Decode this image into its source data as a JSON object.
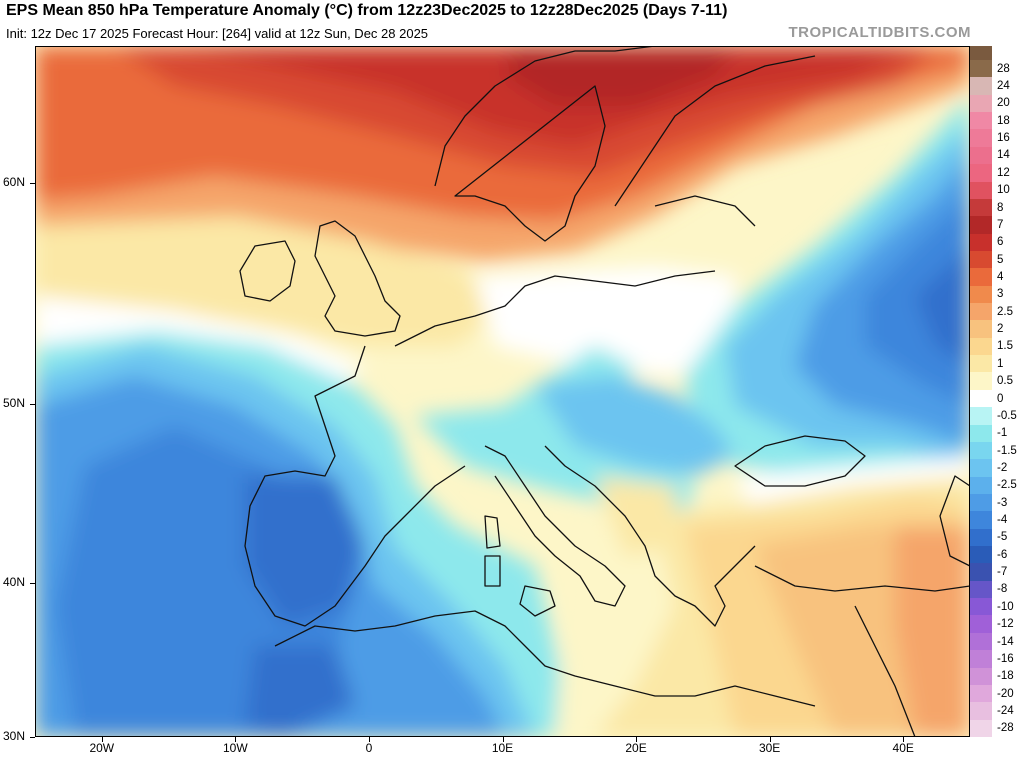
{
  "header": {
    "title": "EPS Mean 850 hPa Temperature Anomaly (°C) from 12z23Dec2025 to 12z28Dec2025 (Days 7-11)",
    "subtitle": "Init: 12z Dec 17 2025   Forecast Hour: [264]   valid at 12z Sun, Dec 28 2025",
    "brand": "TROPICALTIDBITS.COM"
  },
  "axes": {
    "lat_labels": [
      "60N",
      "50N",
      "40N",
      "30N"
    ],
    "lon_labels": [
      "20W",
      "10W",
      "0",
      "10E",
      "20E",
      "30E",
      "40E"
    ],
    "lat_values": [
      60,
      50,
      40,
      30
    ],
    "lon_values": [
      -20,
      -10,
      0,
      10,
      20,
      30,
      40
    ],
    "lon_range": [
      -25,
      45
    ],
    "lat_range": [
      30,
      65
    ]
  },
  "colorbar": {
    "labels": [
      "28",
      "24",
      "20",
      "18",
      "16",
      "14",
      "12",
      "10",
      "8",
      "7",
      "6",
      "5",
      "4",
      "3",
      "2.5",
      "2",
      "1.5",
      "1",
      "0.5",
      "0",
      "-0.5",
      "-1",
      "-1.5",
      "-2",
      "-2.5",
      "-3",
      "-4",
      "-5",
      "-6",
      "-7",
      "-8",
      "-10",
      "-12",
      "-14",
      "-16",
      "-18",
      "-20",
      "-24",
      "-28"
    ],
    "colors": [
      "#8a6a4a",
      "#d8b7b4",
      "#e9a6b3",
      "#f088a5",
      "#ee7a98",
      "#ec6f8d",
      "#ec6680",
      "#e05260",
      "#c53a3a",
      "#b22828",
      "#c8302c",
      "#d84a30",
      "#ea6a3b",
      "#f08a4c",
      "#f5a56a",
      "#f8c27e",
      "#fbd78f",
      "#fbe8a6",
      "#fdf6c8",
      "#ffffff",
      "#b8f4f4",
      "#8de8ec",
      "#79d6ef",
      "#6cc4f0",
      "#5cb0ec",
      "#4e9ce6",
      "#3e86dc",
      "#316fcc",
      "#2a5cb8",
      "#3a52b0",
      "#6656c8",
      "#8858d6",
      "#a060d8",
      "#b070d8",
      "#c080d8",
      "#d092d8",
      "#e0a8dc",
      "#e8bfe0",
      "#f0d5e8"
    ],
    "top_cap_color": "#7a5a3f"
  },
  "map": {
    "regions": [
      {
        "name": "atlantic-cold-anomaly",
        "lon": -13,
        "lat": 40,
        "level": -4
      },
      {
        "name": "iberia-cold-anomaly",
        "lon": -5,
        "lat": 38,
        "level": -4
      },
      {
        "name": "north-africa-cold-anomaly",
        "lon": -5,
        "lat": 32,
        "level": -4
      },
      {
        "name": "western-russia-cold-anomaly",
        "lon": 42,
        "lat": 53,
        "level": -4
      },
      {
        "name": "scandinavia-warm-anomaly",
        "lon": 15,
        "lat": 63,
        "level": 6
      },
      {
        "name": "norwegian-sea-warm-anomaly",
        "lon": -5,
        "lat": 64,
        "level": 5
      },
      {
        "name": "turkey-warm-anomaly",
        "lon": 33,
        "lat": 38,
        "level": 2
      }
    ]
  }
}
